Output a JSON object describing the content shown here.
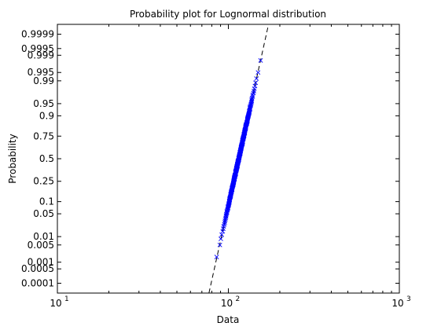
{
  "chart_data": {
    "type": "scatter",
    "title": "Probability plot for Lognormal distribution",
    "xlabel": "Data",
    "ylabel": "Probability",
    "x_scale": "log",
    "xlim": [
      10,
      1000
    ],
    "x_ticks": [
      {
        "value": 10,
        "base": "10",
        "exponent": "1"
      },
      {
        "value": 100,
        "base": "10",
        "exponent": "2"
      },
      {
        "value": 1000,
        "base": "10",
        "exponent": "3"
      }
    ],
    "y_scale": "lognormal-probability",
    "ylim": [
      3e-05,
      0.99997
    ],
    "y_ticks": [
      {
        "value": 0.0001,
        "label": "0.0001"
      },
      {
        "value": 0.0005,
        "label": "0.0005"
      },
      {
        "value": 0.001,
        "label": "0.001"
      },
      {
        "value": 0.005,
        "label": "0.005"
      },
      {
        "value": 0.01,
        "label": "0.01"
      },
      {
        "value": 0.05,
        "label": "0.05"
      },
      {
        "value": 0.1,
        "label": "0.1"
      },
      {
        "value": 0.25,
        "label": "0.25"
      },
      {
        "value": 0.5,
        "label": "0.5"
      },
      {
        "value": 0.75,
        "label": "0.75"
      },
      {
        "value": 0.9,
        "label": "0.9"
      },
      {
        "value": 0.95,
        "label": "0.95"
      },
      {
        "value": 0.99,
        "label": "0.99"
      },
      {
        "value": 0.995,
        "label": "0.995"
      },
      {
        "value": 0.999,
        "label": "0.999"
      },
      {
        "value": 0.9995,
        "label": "0.9995"
      },
      {
        "value": 0.9999,
        "label": "0.9999"
      }
    ],
    "grid": false,
    "marker": "x",
    "marker_color": "#0000ff",
    "fit_line_color": "#000000",
    "fit_line_style": "dashed",
    "fit_line": {
      "median": 115,
      "sigma": 0.1
    },
    "sample_range": [
      84,
      155
    ]
  }
}
